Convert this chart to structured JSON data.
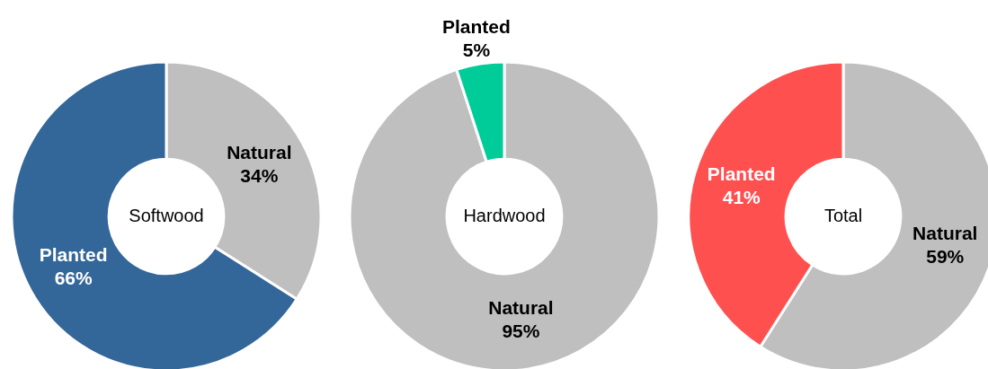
{
  "chart_data": [
    {
      "type": "donut",
      "title": "Softwood",
      "categories": [
        "Natural",
        "Planted"
      ],
      "values": [
        34,
        66
      ],
      "value_labels": [
        "34%",
        "66%"
      ],
      "colors": [
        "#bfbfbf",
        "#336699"
      ],
      "legend": false
    },
    {
      "type": "donut",
      "title": "Hardwood",
      "categories": [
        "Natural",
        "Planted"
      ],
      "values": [
        95,
        5
      ],
      "value_labels": [
        "95%",
        "5%"
      ],
      "colors": [
        "#bfbfbf",
        "#00cc99"
      ],
      "legend": false
    },
    {
      "type": "donut",
      "title": "Total",
      "categories": [
        "Natural",
        "Planted"
      ],
      "values": [
        59,
        41
      ],
      "value_labels": [
        "59%",
        "41%"
      ],
      "colors": [
        "#bfbfbf",
        "#ff5050"
      ],
      "legend": false
    }
  ]
}
